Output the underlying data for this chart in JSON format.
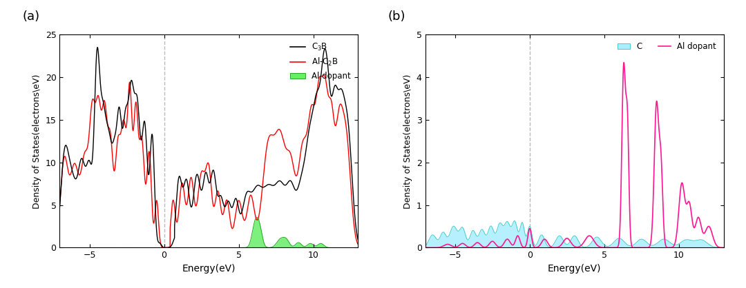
{
  "title_a": "(a)",
  "title_b": "(b)",
  "xlabel": "Energy(eV)",
  "ylabel": "Density of States(electrons\\eV)",
  "xlim": [
    -7,
    13
  ],
  "ylim_a": [
    0,
    25
  ],
  "ylim_b": [
    0,
    5
  ],
  "yticks_a": [
    0,
    5,
    10,
    15,
    20,
    25
  ],
  "yticks_b": [
    0,
    1,
    2,
    3,
    4,
    5
  ],
  "xticks": [
    -5,
    0,
    5,
    10
  ],
  "color_c3b": "#000000",
  "color_alc2b": "#ff0000",
  "color_aldopant_a_fill": "#66ee66",
  "color_aldopant_a_edge": "#22aa22",
  "color_c_fill": "#aaeeff",
  "color_c_line": "#44cccc",
  "color_aldopant_b": "#ff1493",
  "vline_color": "#bbbbbb",
  "vline_style": "--",
  "figsize": [
    10.8,
    4.18
  ],
  "dpi": 100
}
